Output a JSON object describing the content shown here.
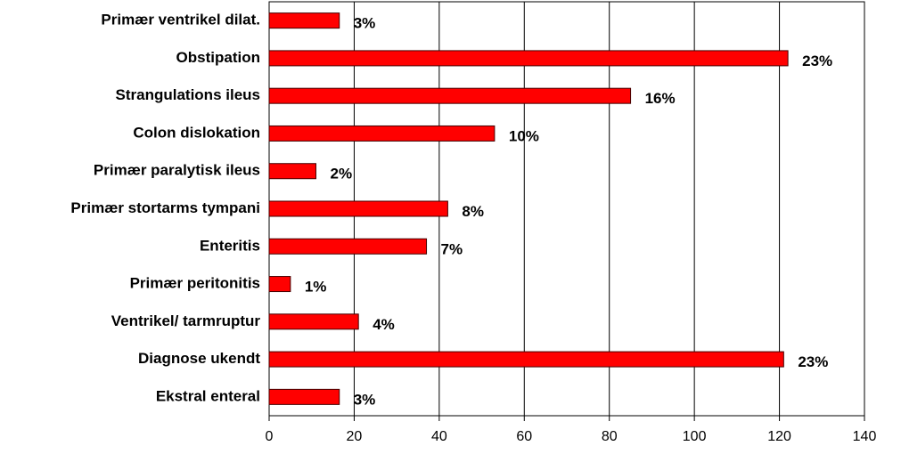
{
  "chart_data": {
    "type": "hbar",
    "categories": [
      "Primær ventrikel dilat.",
      "Obstipation",
      "Strangulations ileus",
      "Colon dislokation",
      "Primær paralytisk ileus",
      "Primær stortarms tympani",
      "Enteritis",
      "Primær peritonitis",
      "Ventrikel/ tarmruptur",
      "Diagnose ukendt",
      "Ekstral enteral"
    ],
    "values": [
      16.5,
      122,
      85,
      53,
      11,
      42,
      37,
      5,
      21,
      121,
      16.5
    ],
    "annotations": [
      "3%",
      "23%",
      "16%",
      "10%",
      "2%",
      "8%",
      "7%",
      "1%",
      "4%",
      "23%",
      "3%"
    ],
    "color": "#ff0000",
    "xlim": [
      0,
      140
    ],
    "xticks": [
      0,
      20,
      40,
      60,
      80,
      100,
      120,
      140
    ],
    "grid": true
  }
}
